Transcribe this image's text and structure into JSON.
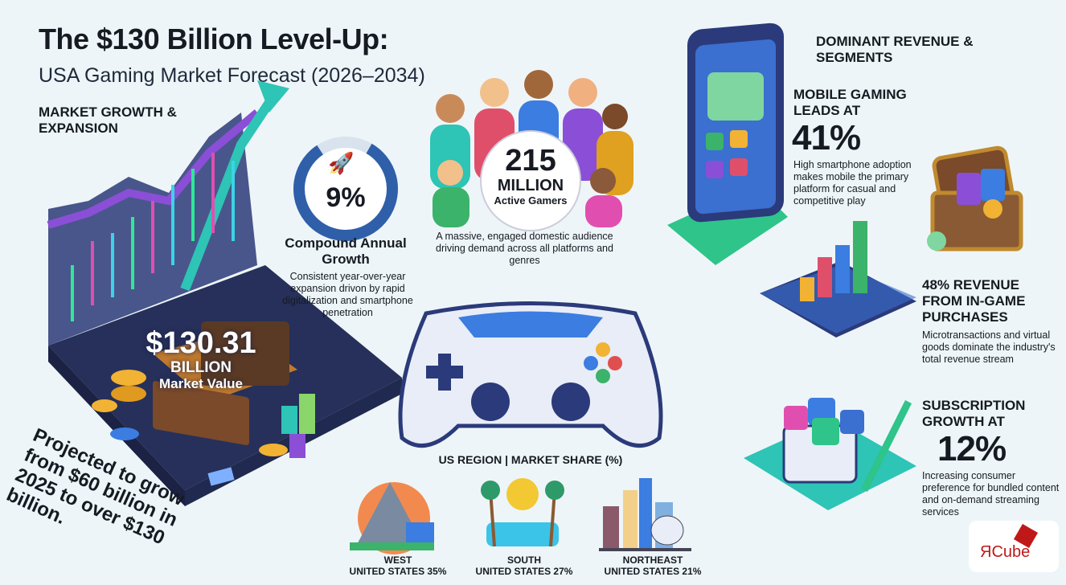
{
  "header": {
    "title": "The $130 Billion Level-Up:",
    "subtitle": "USA Gaming Market Forecast (2026–2034)"
  },
  "market_growth": {
    "heading": "MARKET GROWTH & EXPANSION",
    "value": "$130.31",
    "value_unit": "BILLION",
    "value_label": "Market Value",
    "projection": "Projected to grow from $60 billion in 2025 to over $130 billion."
  },
  "cagr": {
    "value": "9%",
    "title": "Compound Annual Growth",
    "description": "Consistent year-over-year expansion drivon by rapid digitalization and smartphone penetration",
    "icon": "rocket-icon"
  },
  "gamers": {
    "value": "215",
    "unit": "MILLION",
    "label": "Active Gamers",
    "description": "A massive, engaged domestic audience driving demand across all platforms and genres"
  },
  "segments": {
    "heading": "DOMINANT REVENUE & SEGMENTS",
    "mobile": {
      "title": "MOBILE GAMING LEADS AT",
      "value": "41%",
      "description": "High smartphone adoption makes mobile the primary platform for casual and competitive play"
    },
    "in_game": {
      "title": "48% REVENUE FROM IN-GAME PURCHASES",
      "description": "Microtransactions and virtual goods dominate the industry's total revenue stream"
    },
    "subscription": {
      "title": "SUBSCRIPTION GROWTH AT",
      "value": "12%",
      "description": "Increasing consumer preference for bundled content and on-demand streaming services"
    }
  },
  "regions": {
    "heading": "US REGION | MARKET SHARE (%)",
    "items": [
      {
        "name": "WEST",
        "share": "UNITED STATES 35%"
      },
      {
        "name": "SOUTH",
        "share": "UNITED STATES 27%"
      },
      {
        "name": "NORTHEAST",
        "share": "UNITED STATES 21%"
      }
    ]
  },
  "logo": {
    "text": "ЯCube"
  },
  "colors": {
    "accent_blue": "#2f5fa8",
    "teal": "#2ec4b6",
    "purple": "#8a4fd6",
    "dark_navy": "#26305a",
    "gold": "#f2b233"
  }
}
